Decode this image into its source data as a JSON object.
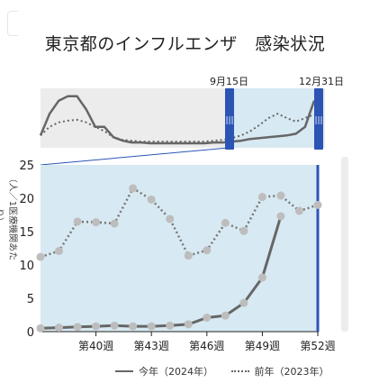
{
  "title": "東京都のインフルエンザ　感染状況",
  "navigator": {
    "range_start_label": "9月15日",
    "range_end_label": "12月31日",
    "series_current": [
      1.0,
      3.5,
      5.0,
      5.5,
      5.5,
      4.0,
      2.0,
      2.0,
      0.8,
      0.4,
      0.2,
      0.2,
      0.1,
      0.1,
      0.1,
      0.1,
      0.1,
      0.1,
      0.1,
      0.2,
      0.2,
      0.3,
      0.4,
      0.6,
      0.7,
      0.8,
      0.9,
      1.0,
      1.2,
      2.0,
      5.0
    ],
    "series_previous": [
      1.0,
      2.0,
      2.5,
      2.7,
      2.8,
      2.5,
      2.0,
      1.5,
      0.8,
      0.5,
      0.4,
      0.3,
      0.3,
      0.3,
      0.3,
      0.3,
      0.3,
      0.3,
      0.3,
      0.4,
      0.5,
      0.7,
      1.0,
      1.5,
      2.2,
      3.0,
      3.5,
      3.0,
      2.6,
      3.0,
      3.4
    ]
  },
  "chart_data": {
    "type": "line",
    "xlabel": "",
    "ylabel": "（人／1医療機関あたり）",
    "ylim": [
      0,
      25
    ],
    "yticks": [
      0,
      5,
      10,
      15,
      20,
      25
    ],
    "x": [
      37,
      38,
      39,
      40,
      41,
      42,
      43,
      44,
      45,
      46,
      47,
      48,
      49,
      50,
      51,
      52
    ],
    "xlim": [
      37,
      52
    ],
    "xtick_values": [
      40,
      43,
      46,
      49,
      52
    ],
    "xtick_labels": [
      "第40週",
      "第43週",
      "第46週",
      "第49週",
      "第52週"
    ],
    "grid": false,
    "legend_position": "bottom",
    "series": [
      {
        "name": "今年（2024年）",
        "style": "solid",
        "color": "#666666",
        "values": [
          0.5,
          0.6,
          0.7,
          0.8,
          0.9,
          0.8,
          0.8,
          0.9,
          1.1,
          2.1,
          2.4,
          4.3,
          8.1,
          17.3,
          null,
          null
        ]
      },
      {
        "name": "前年（2023年）",
        "style": "dotted",
        "color": "#777777",
        "values": [
          11.2,
          12.1,
          16.5,
          16.4,
          16.2,
          21.5,
          19.8,
          16.9,
          11.4,
          12.2,
          16.3,
          15.1,
          20.2,
          20.4,
          18.1,
          19.0
        ]
      }
    ],
    "colors": {
      "plot_background": "#d7e9f2",
      "marker": "#bdbdbd",
      "range_marker": "#2b54b5"
    }
  }
}
